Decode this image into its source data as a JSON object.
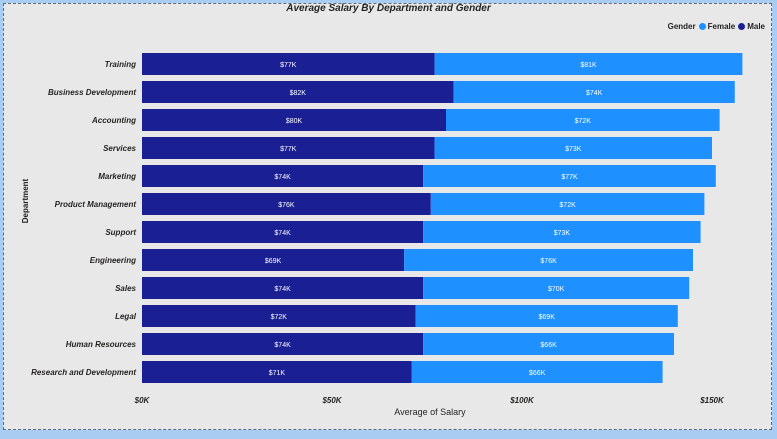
{
  "chart_data": {
    "type": "bar",
    "orientation": "horizontal",
    "stacked": true,
    "title": "Average Salary By Department and Gender",
    "xlabel": "Average of Salary",
    "ylabel": "Department",
    "xlim": [
      0,
      160000
    ],
    "x_ticks": [
      {
        "value": 0,
        "label": "$0K"
      },
      {
        "value": 50000,
        "label": "$50K"
      },
      {
        "value": 100000,
        "label": "$100K"
      },
      {
        "value": 150000,
        "label": "$150K"
      }
    ],
    "legend": {
      "title": "Gender",
      "position": "top-right"
    },
    "categories": [
      "Training",
      "Business Development",
      "Accounting",
      "Services",
      "Marketing",
      "Product Management",
      "Support",
      "Engineering",
      "Sales",
      "Legal",
      "Human Resources",
      "Research and Development"
    ],
    "series": [
      {
        "name": "Male",
        "color": "#1a2093",
        "values": [
          77000,
          82000,
          80000,
          77000,
          74000,
          76000,
          74000,
          69000,
          74000,
          72000,
          74000,
          71000
        ],
        "labels": [
          "$77K",
          "$82K",
          "$80K",
          "$77K",
          "$74K",
          "$76K",
          "$74K",
          "$69K",
          "$74K",
          "$72K",
          "$74K",
          "$71K"
        ]
      },
      {
        "name": "Female",
        "color": "#1e90ff",
        "values": [
          81000,
          74000,
          72000,
          73000,
          77000,
          72000,
          73000,
          76000,
          70000,
          69000,
          66000,
          66000
        ],
        "labels": [
          "$81K",
          "$74K",
          "$72K",
          "$73K",
          "$77K",
          "$72K",
          "$73K",
          "$76K",
          "$70K",
          "$69K",
          "$66K",
          "$66K"
        ]
      }
    ]
  }
}
